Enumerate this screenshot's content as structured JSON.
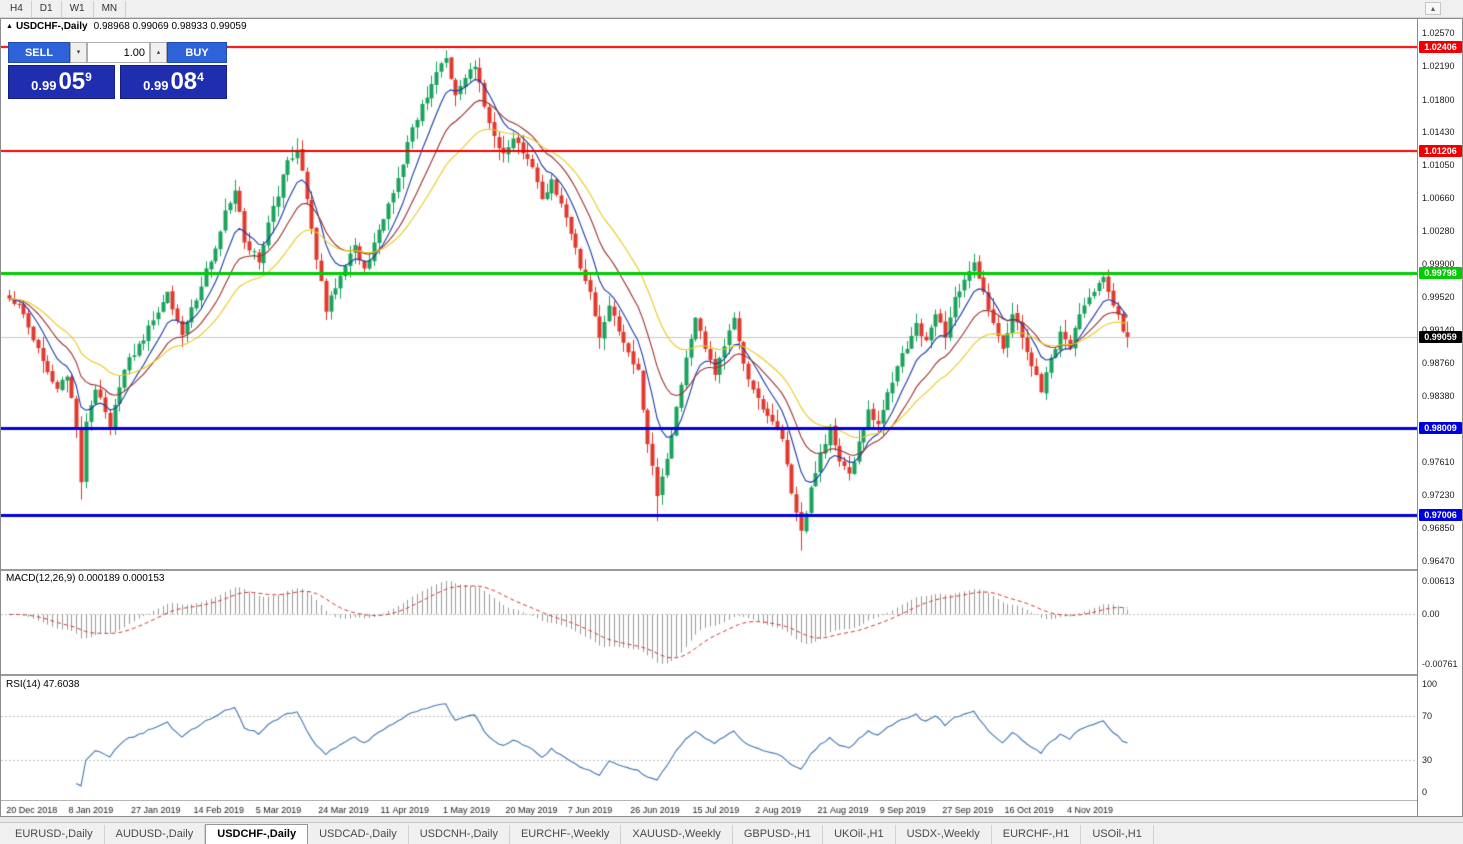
{
  "toolbar": {
    "timeframes": [
      "H4",
      "D1",
      "W1",
      "MN"
    ],
    "collapse_icon": "▴"
  },
  "chart_header": {
    "expand_icon": "▲",
    "title": "USDCHF-,Daily",
    "ohlc": "0.98968 0.99069 0.98933 0.99059"
  },
  "trade_panel": {
    "sell_label": "SELL",
    "buy_label": "BUY",
    "volume": "1.00",
    "spin_down": "▾",
    "spin_up": "▴",
    "sell_price": {
      "prefix": "0.99",
      "big": "05",
      "sup": "9"
    },
    "buy_price": {
      "prefix": "0.99",
      "big": "08",
      "sup": "4"
    }
  },
  "bottom_tabs": [
    "EURUSD-,Daily",
    "AUDUSD-,Daily",
    "USDCHF-,Daily",
    "USDCAD-,Daily",
    "USDCNH-,Daily",
    "EURCHF-,Weekly",
    "XAUUSD-,Weekly",
    "GBPUSD-,H1",
    "UKOil-,H1",
    "USDX-,Weekly",
    "EURCHF-,H1",
    "USOil-,H1"
  ],
  "active_tab": "USDCHF-,Daily",
  "chart_data": {
    "type": "candlestick",
    "symbol": "USDCHF",
    "period": "Daily",
    "y_axis_ticks": [
      1.0257,
      1.0219,
      1.018,
      1.0143,
      1.0105,
      1.0066,
      1.0028,
      0.999,
      0.9952,
      0.9914,
      0.9876,
      0.9838,
      0.98,
      0.9761,
      0.9723,
      0.9685,
      0.9647
    ],
    "x_labels": [
      "20 Dec 2018",
      "8 Jan 2019",
      "27 Jan 2019",
      "14 Feb 2019",
      "5 Mar 2019",
      "24 Mar 2019",
      "11 Apr 2019",
      "1 May 2019",
      "20 May 2019",
      "7 Jun 2019",
      "26 Jun 2019",
      "15 Jul 2019",
      "2 Aug 2019",
      "21 Aug 2019",
      "9 Sep 2019",
      "27 Sep 2019",
      "16 Oct 2019",
      "4 Nov 2019"
    ],
    "x_label_start_index": 4,
    "x_label_stride": 13,
    "candle_count": 234,
    "price_anchors": [
      [
        0,
        0.995
      ],
      [
        3,
        0.9932
      ],
      [
        5,
        0.9902
      ],
      [
        7,
        0.9878
      ],
      [
        10,
        0.9846
      ],
      [
        12,
        0.986
      ],
      [
        14,
        0.98
      ],
      [
        15,
        0.9738
      ],
      [
        16,
        0.9808
      ],
      [
        18,
        0.9845
      ],
      [
        21,
        0.9802
      ],
      [
        24,
        0.9868
      ],
      [
        27,
        0.9898
      ],
      [
        30,
        0.9925
      ],
      [
        33,
        0.9958
      ],
      [
        36,
        0.9908
      ],
      [
        39,
        0.9948
      ],
      [
        41,
        0.9985
      ],
      [
        43,
        1.0008
      ],
      [
        45,
        1.0052
      ],
      [
        47,
        1.0075
      ],
      [
        49,
        1.0015
      ],
      [
        52,
        0.9992
      ],
      [
        54,
        1.0038
      ],
      [
        56,
        1.0068
      ],
      [
        58,
        1.011
      ],
      [
        60,
        1.0122
      ],
      [
        62,
        1.0065
      ],
      [
        64,
        0.9995
      ],
      [
        66,
        0.9935
      ],
      [
        68,
        0.9962
      ],
      [
        70,
        0.9988
      ],
      [
        72,
        1.0012
      ],
      [
        74,
        0.9985
      ],
      [
        76,
        1.0015
      ],
      [
        78,
        1.0042
      ],
      [
        80,
        1.0072
      ],
      [
        82,
        1.0105
      ],
      [
        84,
        1.0148
      ],
      [
        86,
        1.0175
      ],
      [
        88,
        1.0198
      ],
      [
        90,
        1.0222
      ],
      [
        91,
        1.0228
      ],
      [
        93,
        1.0185
      ],
      [
        95,
        1.0205
      ],
      [
        97,
        1.0218
      ],
      [
        99,
        1.0172
      ],
      [
        101,
        1.0138
      ],
      [
        103,
        1.0118
      ],
      [
        105,
        1.0135
      ],
      [
        107,
        1.0118
      ],
      [
        109,
        1.0102
      ],
      [
        111,
        1.0065
      ],
      [
        113,
        1.0088
      ],
      [
        115,
        1.006
      ],
      [
        117,
        1.0025
      ],
      [
        119,
        0.9985
      ],
      [
        121,
        0.9958
      ],
      [
        123,
        0.9905
      ],
      [
        125,
        0.9942
      ],
      [
        127,
        0.9912
      ],
      [
        129,
        0.9888
      ],
      [
        131,
        0.9868
      ],
      [
        133,
        0.9782
      ],
      [
        135,
        0.9722
      ],
      [
        137,
        0.9765
      ],
      [
        139,
        0.9825
      ],
      [
        141,
        0.9882
      ],
      [
        143,
        0.9928
      ],
      [
        145,
        0.9892
      ],
      [
        147,
        0.9862
      ],
      [
        149,
        0.9895
      ],
      [
        151,
        0.9928
      ],
      [
        153,
        0.9875
      ],
      [
        155,
        0.9845
      ],
      [
        157,
        0.9822
      ],
      [
        159,
        0.9808
      ],
      [
        161,
        0.9788
      ],
      [
        163,
        0.9725
      ],
      [
        165,
        0.9682
      ],
      [
        167,
        0.9732
      ],
      [
        169,
        0.9772
      ],
      [
        171,
        0.9802
      ],
      [
        173,
        0.9762
      ],
      [
        175,
        0.9748
      ],
      [
        177,
        0.9785
      ],
      [
        179,
        0.9822
      ],
      [
        181,
        0.9805
      ],
      [
        183,
        0.9842
      ],
      [
        185,
        0.9872
      ],
      [
        187,
        0.9892
      ],
      [
        189,
        0.9922
      ],
      [
        191,
        0.9902
      ],
      [
        193,
        0.9932
      ],
      [
        195,
        0.9905
      ],
      [
        197,
        0.9952
      ],
      [
        199,
        0.9972
      ],
      [
        201,
        0.9992
      ],
      [
        203,
        0.9958
      ],
      [
        205,
        0.9922
      ],
      [
        207,
        0.9892
      ],
      [
        209,
        0.9932
      ],
      [
        211,
        0.9905
      ],
      [
        213,
        0.9872
      ],
      [
        215,
        0.9842
      ],
      [
        217,
        0.9882
      ],
      [
        219,
        0.9912
      ],
      [
        221,
        0.9892
      ],
      [
        223,
        0.9932
      ],
      [
        226,
        0.9958
      ],
      [
        228,
        0.9975
      ],
      [
        230,
        0.9942
      ],
      [
        232,
        0.9912
      ],
      [
        233,
        0.99059
      ]
    ],
    "wick_events": {
      "15": {
        "low": 0.9718
      },
      "91": {
        "high": 1.0237
      },
      "135": {
        "low": 0.9693
      },
      "165": {
        "low": 0.9659
      },
      "201": {
        "high": 1.0002
      }
    },
    "levels": [
      {
        "price": 1.02406,
        "label": "1.02406",
        "color": "#ee0000",
        "width": 2
      },
      {
        "price": 1.01206,
        "label": "1.01206",
        "color": "#ee0000",
        "width": 2
      },
      {
        "price": 0.99798,
        "label": "0.99798",
        "color": "#00cc00",
        "width": 3
      },
      {
        "price": 0.98009,
        "label": "0.98009",
        "color": "#0000dd",
        "width": 3
      },
      {
        "price": 0.97006,
        "label": "0.97006",
        "color": "#0000dd",
        "width": 3
      }
    ],
    "current_price": {
      "value": 0.99059,
      "label": "0.99059",
      "badge_color": "#000000"
    },
    "moving_averages": [
      {
        "period": 8,
        "color": "#1c3ca8"
      },
      {
        "period": 16,
        "color": "#9e3333"
      },
      {
        "period": 28,
        "color": "#e8cc20"
      }
    ],
    "colors": {
      "up": "#1ba35e",
      "down": "#e2392e",
      "background": "#ffffff",
      "current_line": "#c9c9c9"
    },
    "indicators": {
      "macd": {
        "label": "MACD(12,26,9) 0.000189 0.000153",
        "fast": 12,
        "slow": 26,
        "signal": 9,
        "y_ticks": [
          "0.00613",
          "0.00",
          "-0.00761"
        ],
        "histogram_color": "#9b9b9b",
        "signal_color": "#d23a3a"
      },
      "rsi": {
        "label": "RSI(14) 47.6038",
        "period": 14,
        "y_ticks": [
          "100",
          "70",
          "30",
          "0"
        ],
        "upper": 70,
        "lower": 30,
        "line_color": "#4679b2"
      }
    }
  }
}
